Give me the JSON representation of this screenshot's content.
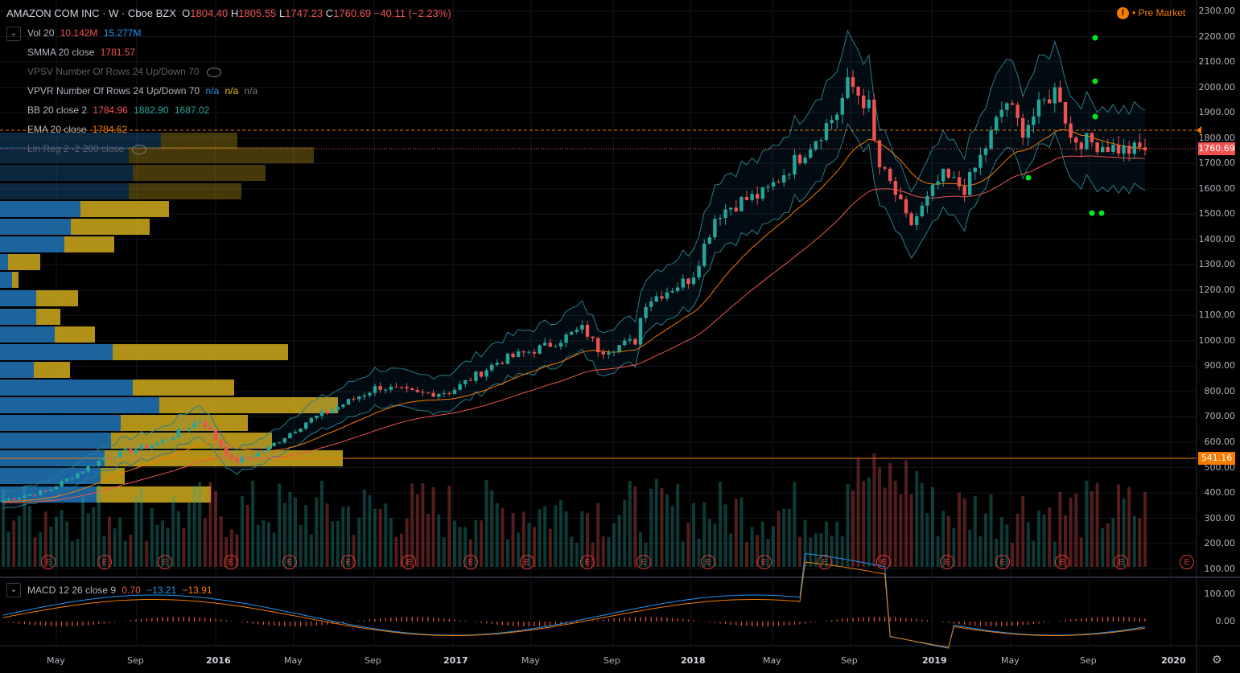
{
  "header": {
    "symbol": "AMAZON COM INC · W · Cboe BZX",
    "o_label": "O",
    "o": "1804.40",
    "h_label": "H",
    "h": "1805.55",
    "l_label": "L",
    "l": "1747.23",
    "c_label": "C",
    "c": "1760.69",
    "change": "−40.11 (−2.23%)"
  },
  "premarket": {
    "icon": "!",
    "label": "• Pre Market"
  },
  "indicators": {
    "vol": {
      "name": "Vol 20",
      "v1": "10.142M",
      "v2": "15.277M"
    },
    "smma": {
      "name": "SMMA 20 close",
      "v1": "1781.57"
    },
    "vpsv": {
      "name": "VPSV Number Of Rows 24 Up/Down 70"
    },
    "vpvr": {
      "name": "VPVR Number Of Rows 24 Up/Down 70",
      "v1": "n/a",
      "v2": "n/a",
      "v3": "n/a"
    },
    "bb": {
      "name": "BB 20 close 2",
      "v1": "1784.96",
      "v2": "1882.90",
      "v3": "1687.02"
    },
    "ema": {
      "name": "EMA 20 close",
      "v1": "1784.62"
    },
    "linreg": {
      "name": "Lin Reg 2 -2 200 close"
    }
  },
  "macd": {
    "name": "MACD 12 26 close 9",
    "v1": "0.70",
    "v2": "−13.21",
    "v3": "−13.91"
  },
  "price_axis": [
    "2300.00",
    "2200.00",
    "2100.00",
    "2000.00",
    "1900.00",
    "1800.00",
    "1700.00",
    "1600.00",
    "1500.00",
    "1400.00",
    "1300.00",
    "1200.00",
    "1100.00",
    "1000.00",
    "900.00",
    "800.00",
    "700.00",
    "600.00",
    "500.00",
    "400.00",
    "300.00",
    "200.00",
    "100.00"
  ],
  "macd_axis": [
    "100.00",
    "0.00"
  ],
  "last_price_tag": "1760.69",
  "line_tag": "541.16",
  "time_axis": [
    "May",
    "Sep",
    "2016",
    "May",
    "Sep",
    "2017",
    "May",
    "Sep",
    "2018",
    "May",
    "Sep",
    "2019",
    "May",
    "Sep",
    "2020"
  ],
  "earnings_label": "E",
  "colors": {
    "up": "#26a69a",
    "down": "#ef5350",
    "bg": "#000000",
    "orange": "#f57c00",
    "bb": "#2a7d8a",
    "vp_blue": "#1f6fae",
    "vp_yellow": "#c5a11b",
    "green_dot": "#00e61b"
  }
}
